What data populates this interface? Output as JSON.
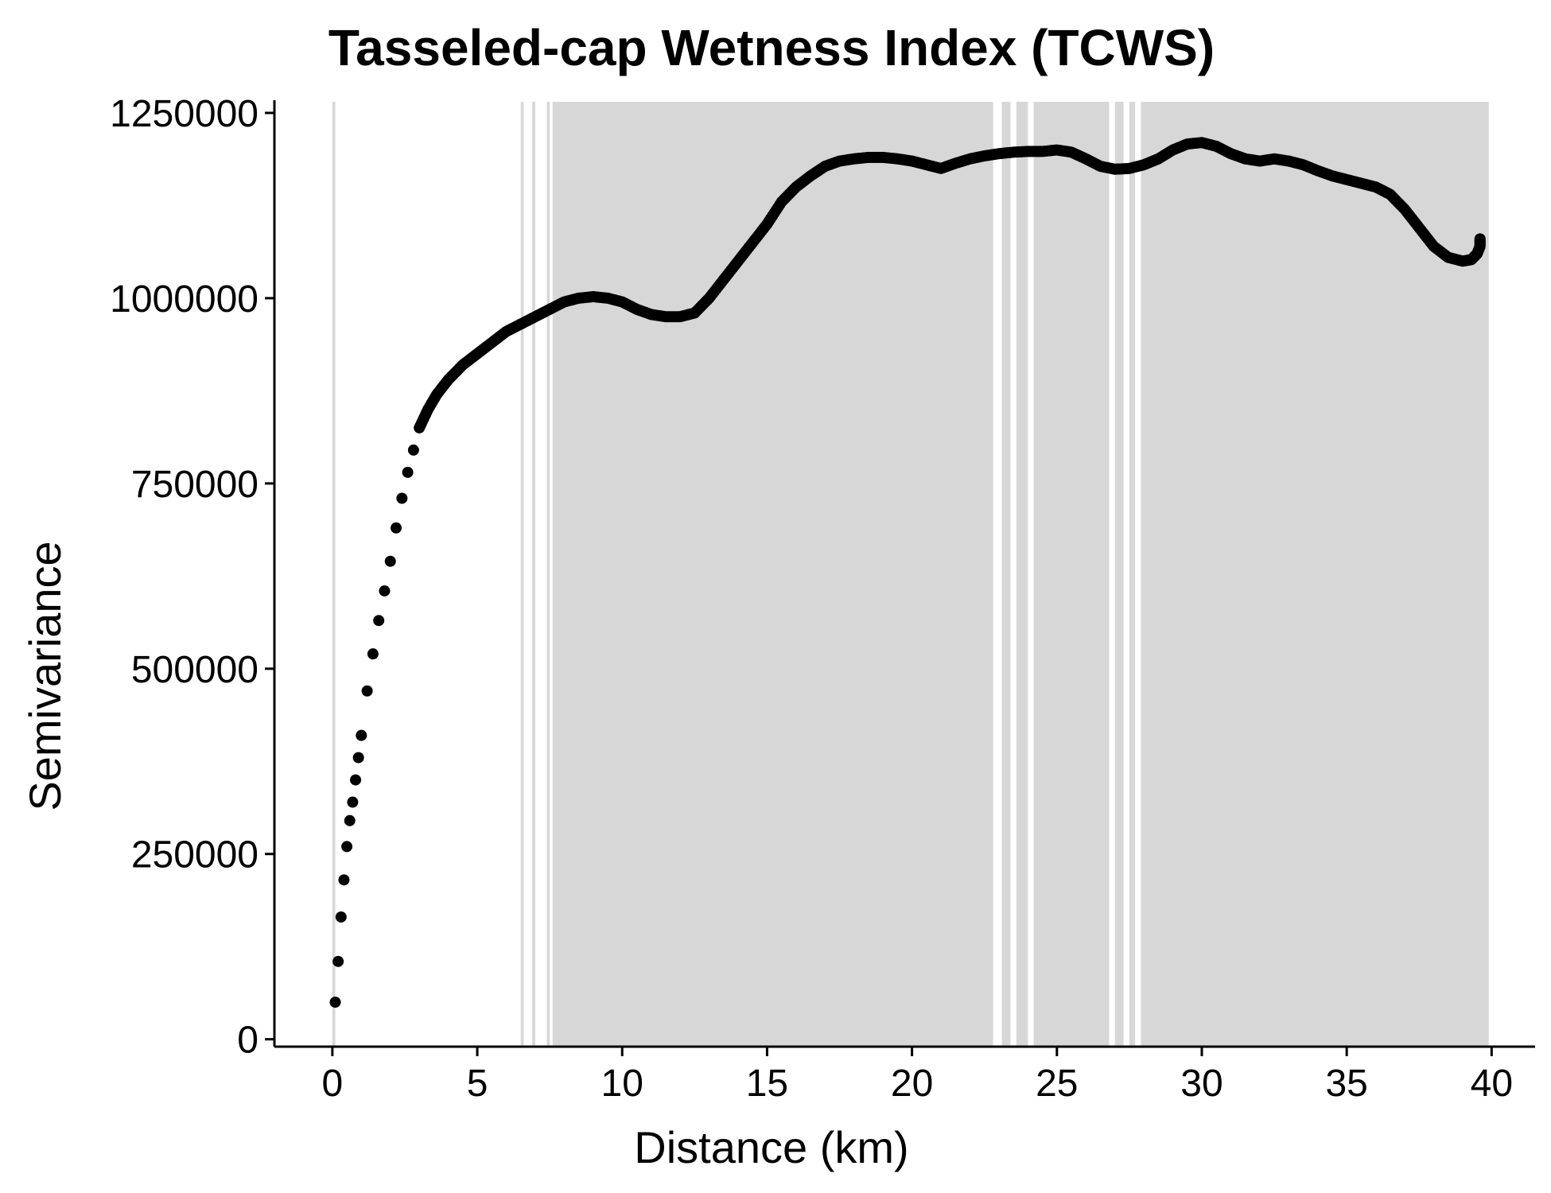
{
  "chart_data": {
    "type": "scatter",
    "title": "Tasseled-cap Wetness Index (TCWS)",
    "xlabel": "Distance (km)",
    "ylabel": "Semivariance",
    "xlim": [
      -2,
      41.5
    ],
    "ylim": [
      -10000,
      1265000
    ],
    "xticks": [
      0,
      5,
      10,
      15,
      20,
      25,
      30,
      35,
      40
    ],
    "xtick_labels": [
      "0",
      "5",
      "10",
      "15",
      "20",
      "25",
      "30",
      "35",
      "40"
    ],
    "yticks": [
      0,
      250000,
      500000,
      750000,
      1000000,
      1250000
    ],
    "ytick_labels": [
      "0",
      "250000",
      "500000",
      "750000",
      "1000000",
      "1250000"
    ],
    "grid": false,
    "legend": "none",
    "point_color": "#000000",
    "band_color": "#d3d3d3",
    "background_bands": {
      "description": "semi-transparent vertical shading",
      "ranges": [
        [
          0.0,
          0.1
        ],
        [
          6.5,
          6.6
        ],
        [
          6.9,
          7.0
        ],
        [
          7.4,
          7.5
        ],
        [
          7.6,
          22.8
        ],
        [
          23.1,
          23.4
        ],
        [
          23.6,
          24.0
        ],
        [
          24.2,
          26.8
        ],
        [
          27.0,
          27.3
        ],
        [
          27.5,
          27.7
        ],
        [
          27.9,
          39.9
        ]
      ]
    },
    "series": [
      {
        "x": [
          0.1,
          0.2,
          0.3,
          0.4,
          0.5,
          0.6,
          0.7,
          0.8,
          0.9,
          1.0,
          1.2,
          1.4,
          1.6,
          1.8,
          2.0,
          2.2,
          2.4,
          2.6,
          2.8,
          3.0,
          3.3,
          3.6,
          4.0,
          4.5,
          5.0,
          5.5,
          6.0,
          6.5,
          7.0,
          7.5,
          8.0,
          8.5,
          9.0,
          9.5,
          10.0,
          10.5,
          11.0,
          11.5,
          12.0,
          12.5,
          13.0,
          13.5,
          14.0,
          14.5,
          15.0,
          15.5,
          16.0,
          16.5,
          17.0,
          17.5,
          18.0,
          18.5,
          19.0,
          19.5,
          20.0,
          20.5,
          21.0,
          21.5,
          22.0,
          22.5,
          23.0,
          23.5,
          24.0,
          24.5,
          25.0,
          25.5,
          26.0,
          26.5,
          27.0,
          27.5,
          28.0,
          28.5,
          29.0,
          29.5,
          30.0,
          30.5,
          31.0,
          31.5,
          32.0,
          32.5,
          33.0,
          33.5,
          34.0,
          34.5,
          35.0,
          35.5,
          36.0,
          36.5,
          37.0,
          37.5,
          38.0,
          38.5,
          39.0,
          39.3,
          39.5,
          39.6,
          39.6
        ],
        "y": [
          50000,
          105000,
          165000,
          215000,
          260000,
          295000,
          320000,
          350000,
          380000,
          410000,
          470000,
          520000,
          565000,
          605000,
          645000,
          690000,
          730000,
          765000,
          795000,
          825000,
          850000,
          870000,
          890000,
          910000,
          925000,
          940000,
          955000,
          965000,
          975000,
          985000,
          995000,
          1000000,
          1002000,
          1000000,
          995000,
          985000,
          978000,
          975000,
          975000,
          980000,
          1000000,
          1025000,
          1050000,
          1075000,
          1100000,
          1130000,
          1150000,
          1165000,
          1178000,
          1185000,
          1188000,
          1190000,
          1190000,
          1188000,
          1185000,
          1180000,
          1175000,
          1182000,
          1188000,
          1192000,
          1195000,
          1197000,
          1198000,
          1198000,
          1200000,
          1197000,
          1188000,
          1178000,
          1174000,
          1175000,
          1180000,
          1188000,
          1200000,
          1208000,
          1210000,
          1205000,
          1195000,
          1188000,
          1185000,
          1188000,
          1185000,
          1180000,
          1172000,
          1165000,
          1160000,
          1155000,
          1150000,
          1140000,
          1120000,
          1095000,
          1070000,
          1055000,
          1050000,
          1052000,
          1060000,
          1070000,
          1080000
        ]
      }
    ]
  }
}
